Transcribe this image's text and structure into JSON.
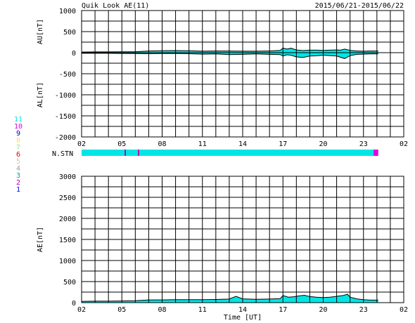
{
  "header": {
    "title": "Quik Look AE(11)",
    "date_range": "2015/06/21-2015/06/22"
  },
  "legend": {
    "entries": [
      {
        "label": "11",
        "color": "#00e5e5"
      },
      {
        "label": "10",
        "color": "#e000e0"
      },
      {
        "label": "9",
        "color": "#0000cc"
      },
      {
        "label": "8",
        "color": "#e8e870"
      },
      {
        "label": "7",
        "color": "#90e890"
      },
      {
        "label": "6",
        "color": "#e00000"
      },
      {
        "label": "5",
        "color": "#c8c8c8"
      },
      {
        "label": "4",
        "color": "#a0a0a0"
      },
      {
        "label": "3",
        "color": "#00a0a0"
      },
      {
        "label": "2",
        "color": "#b000b0"
      },
      {
        "label": "1",
        "color": "#0000e0"
      }
    ]
  },
  "chart_data": [
    {
      "type": "area",
      "ylabel_top": "AU[nT]",
      "ylabel_bottom": "AL[nT]",
      "ylim": [
        -2000,
        1000
      ],
      "yticks": [
        1000,
        500,
        0,
        -500,
        -1000,
        -1500,
        -2000
      ],
      "xlim": [
        2,
        26
      ],
      "xticks": [
        "02",
        "05",
        "08",
        "11",
        "14",
        "17",
        "20",
        "23",
        "02"
      ],
      "fill_color": "#00e5e5",
      "grid": true,
      "series": [
        {
          "key": "AU",
          "x": [
            2,
            3,
            4,
            5,
            6,
            7,
            8,
            9,
            10,
            11,
            12,
            13,
            14,
            15,
            16,
            16.8,
            17,
            17.3,
            17.6,
            18,
            18.5,
            19,
            19.5,
            20,
            20.5,
            21,
            21.3,
            21.6,
            22,
            22.5,
            23,
            23.5,
            24.1
          ],
          "values": [
            15,
            18,
            18,
            20,
            22,
            40,
            45,
            50,
            45,
            35,
            40,
            40,
            35,
            35,
            40,
            55,
            110,
            85,
            105,
            65,
            50,
            60,
            60,
            55,
            60,
            65,
            60,
            85,
            55,
            40,
            35,
            40,
            40
          ]
        },
        {
          "key": "AL",
          "x": [
            2,
            3,
            4,
            5,
            6,
            7,
            8,
            9,
            10,
            11,
            12,
            13,
            14,
            15,
            16,
            16.8,
            17,
            17.3,
            17.6,
            18,
            18.5,
            19,
            19.5,
            20,
            20.5,
            21,
            21.3,
            21.6,
            22,
            22.5,
            23,
            23.5,
            24.1
          ],
          "values": [
            -15,
            -15,
            -15,
            -18,
            -20,
            -25,
            -20,
            -20,
            -25,
            -35,
            -30,
            -45,
            -40,
            -30,
            -40,
            -45,
            -80,
            -50,
            -60,
            -100,
            -115,
            -80,
            -75,
            -60,
            -70,
            -80,
            -110,
            -140,
            -70,
            -40,
            -35,
            -30,
            -30
          ]
        }
      ]
    },
    {
      "type": "bar",
      "ylabel": "N.STN",
      "xlim": [
        2,
        26
      ],
      "segments": [
        {
          "from": 2,
          "to": 5.2,
          "color": "#00e5e5"
        },
        {
          "from": 5.2,
          "to": 5.3,
          "color": "#b000b0"
        },
        {
          "from": 5.3,
          "to": 6.2,
          "color": "#00e5e5"
        },
        {
          "from": 6.2,
          "to": 6.3,
          "color": "#b000b0"
        },
        {
          "from": 6.3,
          "to": 23.75,
          "color": "#00e5e5"
        },
        {
          "from": 23.75,
          "to": 24.1,
          "color": "#e000e0"
        }
      ]
    },
    {
      "type": "area",
      "ylabel": "AE[nT]",
      "xlabel": "Time [UT]",
      "ylim": [
        0,
        3000
      ],
      "yticks": [
        3000,
        2500,
        2000,
        1500,
        1000,
        500,
        0
      ],
      "xlim": [
        2,
        26
      ],
      "xticks": [
        "02",
        "05",
        "08",
        "11",
        "14",
        "17",
        "20",
        "23",
        "02"
      ],
      "fill_color": "#00e5e5",
      "grid": true,
      "x": [
        2,
        3,
        4,
        5,
        6,
        7,
        8,
        9,
        10,
        11,
        12,
        13,
        13.5,
        14,
        15,
        16,
        16.8,
        17,
        17.4,
        17.8,
        18.2,
        18.6,
        19,
        19.5,
        20,
        20.5,
        21,
        21.5,
        21.8,
        22,
        22.5,
        23,
        23.5,
        24.1
      ],
      "values": [
        30,
        35,
        35,
        40,
        45,
        65,
        65,
        70,
        70,
        70,
        75,
        85,
        150,
        90,
        80,
        85,
        95,
        170,
        130,
        140,
        160,
        175,
        145,
        130,
        120,
        130,
        150,
        170,
        200,
        130,
        90,
        70,
        60,
        60
      ]
    }
  ]
}
